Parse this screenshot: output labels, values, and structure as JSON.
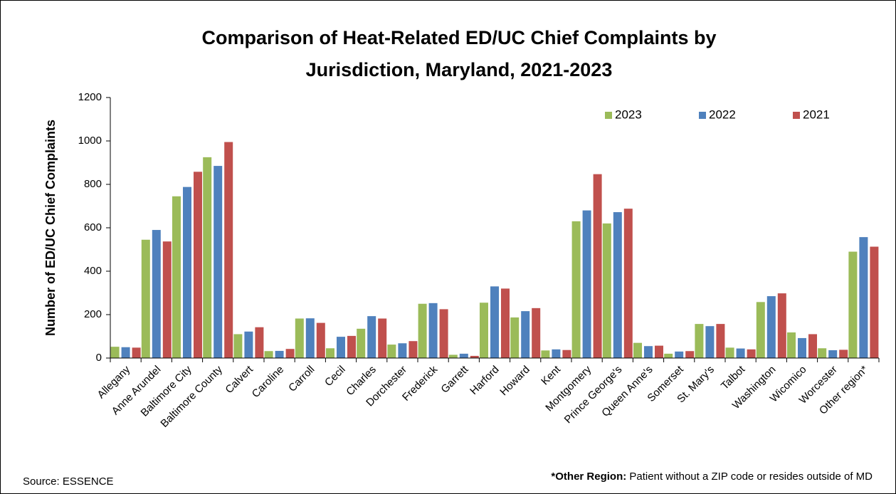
{
  "chart_data": {
    "type": "bar",
    "title": [
      "Comparison of Heat-Related ED/UC Chief Complaints by",
      "Jurisdiction, Maryland, 2021-2023"
    ],
    "y_label": "Number of ED/UC Chief Complaints",
    "source": "Source: ESSENCE",
    "footnote_label": "*Other Region:",
    "footnote_text": "Patient without a ZIP code or resides outside of MD",
    "categories": [
      "Allegany",
      "Anne Arundel",
      "Baltimore City",
      "Baltimore County",
      "Calvert",
      "Caroline",
      "Carroll",
      "Cecil",
      "Charles",
      "Dorchester",
      "Frederick",
      "Garrett",
      "Harford",
      "Howard",
      "Kent",
      "Montgomery",
      "Prince George's",
      "Queen Anne's",
      "Somerset",
      "St. Mary's",
      "Talbot",
      "Washington",
      "Wicomico",
      "Worcester",
      "Other region*"
    ],
    "series": [
      {
        "name": "2023",
        "color": "#9bbb59",
        "values": [
          52,
          545,
          745,
          925,
          110,
          32,
          182,
          45,
          135,
          62,
          250,
          15,
          255,
          187,
          35,
          630,
          620,
          70,
          20,
          157,
          48,
          258,
          118,
          45,
          490
        ]
      },
      {
        "name": "2022",
        "color": "#4f81bd",
        "values": [
          50,
          590,
          788,
          885,
          122,
          33,
          183,
          98,
          193,
          68,
          253,
          20,
          330,
          216,
          40,
          680,
          672,
          55,
          30,
          147,
          44,
          285,
          92,
          36,
          557
        ]
      },
      {
        "name": "2021",
        "color": "#c0504d",
        "values": [
          48,
          537,
          858,
          995,
          142,
          42,
          162,
          102,
          182,
          78,
          225,
          10,
          320,
          230,
          37,
          847,
          688,
          57,
          32,
          157,
          40,
          298,
          110,
          38,
          513
        ]
      }
    ],
    "ylim": [
      0,
      1200
    ],
    "yticks": [
      0,
      200,
      400,
      600,
      800,
      1000,
      1200
    ],
    "grid": false,
    "legend": "top-right"
  }
}
